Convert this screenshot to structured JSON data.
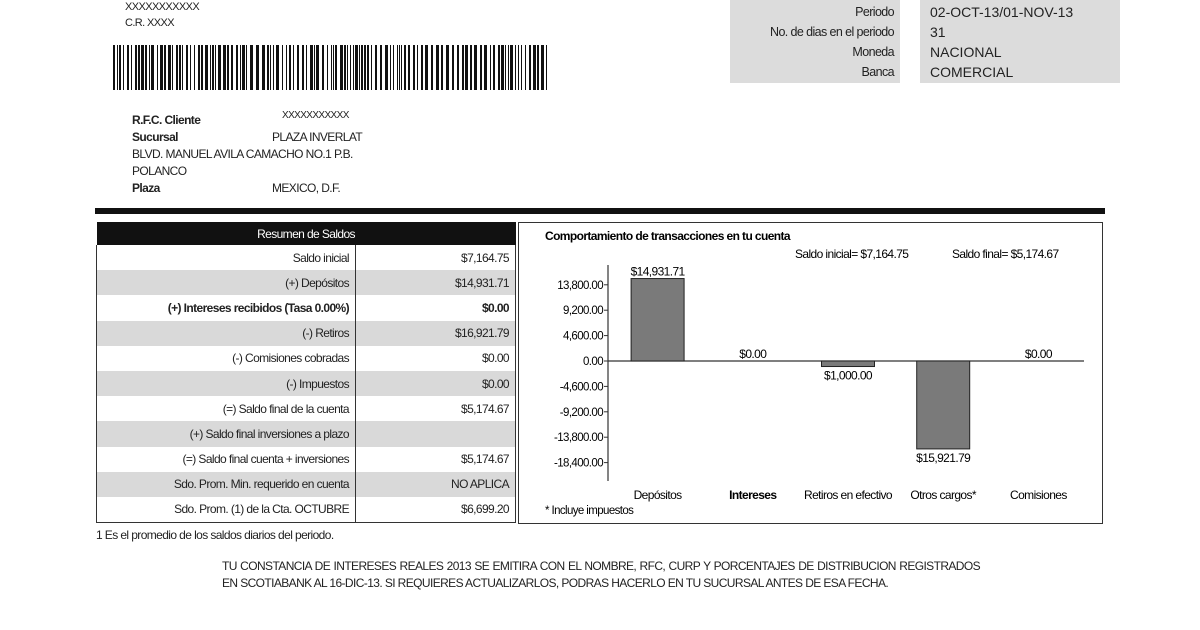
{
  "header": {
    "account_masked": "XXXXXXXXXXX",
    "cr": "C.R. XXXX"
  },
  "period_info": {
    "rows": [
      {
        "label": "Periodo",
        "value": "02-OCT-13/01-NOV-13"
      },
      {
        "label": "No. de dias en el periodo",
        "value": "31"
      },
      {
        "label": "Moneda",
        "value": "NACIONAL"
      },
      {
        "label": "Banca",
        "value": "COMERCIAL"
      }
    ]
  },
  "client": {
    "rfc_label": "R.F.C. Cliente",
    "rfc_value": "XXXXXXXXXXX",
    "sucursal_label": "Sucursal",
    "sucursal_value": "PLAZA INVERLAT",
    "address_line1": "BLVD. MANUEL AVILA CAMACHO NO.1 P.B.",
    "address_line2": "POLANCO",
    "plaza_label": "Plaza",
    "plaza_value": "MEXICO, D.F."
  },
  "summary": {
    "title": "Resumen de Saldos",
    "rows": [
      {
        "label": "Saldo inicial",
        "value": "$7,164.75"
      },
      {
        "label": "(+) Depósitos",
        "value": "$14,931.71"
      },
      {
        "label": "(+) Intereses recibidos (Tasa 0.00%)",
        "value": "$0.00",
        "bold": true
      },
      {
        "label": "(-) Retiros",
        "value": "$16,921.79"
      },
      {
        "label": "(-) Comisiones cobradas",
        "value": "$0.00"
      },
      {
        "label": "(-) Impuestos",
        "value": "$0.00"
      },
      {
        "label": "(=) Saldo final de la cuenta",
        "value": "$5,174.67"
      },
      {
        "label": "(+) Saldo final inversiones a plazo",
        "value": ""
      },
      {
        "label": "(=) Saldo final cuenta + inversiones",
        "value": "$5,174.67"
      },
      {
        "label": "Sdo. Prom. Min. requerido en cuenta",
        "value": "NO APLICA"
      },
      {
        "label": "Sdo. Prom. (1) de la Cta. OCTUBRE",
        "value": "$6,699.20"
      }
    ],
    "footnote": "1 Es el promedio de los saldos diarios del periodo."
  },
  "chart_data": {
    "type": "bar",
    "title": "Comportamiento de transacciones en tu cuenta",
    "subtitle_initial": "Saldo inicial= $7,164.75",
    "subtitle_final": "Saldo final= $5,174.67",
    "categories": [
      "Depósitos",
      "Intereses",
      "Retiros en efectivo",
      "Otros cargos*",
      "Comisiones"
    ],
    "values": [
      14931.71,
      0,
      -1000.0,
      -15921.79,
      0
    ],
    "data_labels": [
      "$14,931.71",
      "$0.00",
      "$1,000.00",
      "$15,921.79",
      "$0.00"
    ],
    "yticks": [
      13800,
      9200,
      4600,
      0,
      -4600,
      -9200,
      -13800,
      -18400
    ],
    "ytick_labels": [
      "13,800.00",
      "9,200.00",
      "4,600.00",
      "0.00",
      "-4,600.00",
      "-9,200.00",
      "-13,800.00",
      "-18,400.00"
    ],
    "ylim": [
      -20000,
      16000
    ],
    "grid": false,
    "bar_color": "#7a7a7a",
    "note": "* Incluye impuestos"
  },
  "notice": "TU CONSTANCIA DE INTERESES REALES 2013 SE EMITIRA CON EL NOMBRE, RFC, CURP Y PORCENTAJES DE DISTRIBUCION REGISTRADOS EN SCOTIABANK AL 16-DIC-13. SI REQUIERES ACTUALIZARLOS, PODRAS HACERLO EN TU SUCURSAL ANTES DE ESA FECHA."
}
